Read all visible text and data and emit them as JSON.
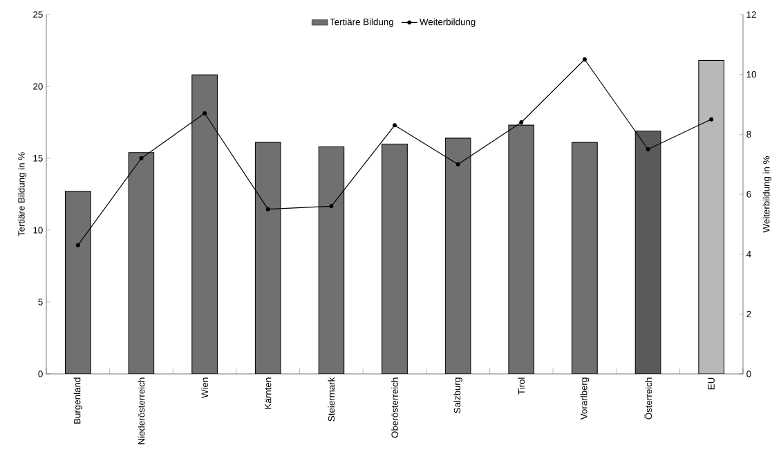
{
  "chart_data": {
    "type": "bar",
    "categories": [
      "Burgenland",
      "Niederösterreich",
      "Wien",
      "Kärnten",
      "Steiermark",
      "Oberösterreich",
      "Salzburg",
      "Tirol",
      "Vorarlberg",
      "Österreich",
      "EU"
    ],
    "series": [
      {
        "name": "Tertiäre Bildung",
        "color": "#707070",
        "colors": [
          "#707070",
          "#707070",
          "#707070",
          "#707070",
          "#707070",
          "#707070",
          "#707070",
          "#707070",
          "#707070",
          "#5a5a5a",
          "#b8b8b8"
        ],
        "values": [
          12.7,
          15.4,
          20.8,
          16.1,
          15.8,
          16.0,
          16.4,
          17.3,
          16.1,
          16.9,
          21.8
        ]
      },
      {
        "name": "Weiterbildung",
        "type": "line",
        "axis": "y2",
        "color": "#000000",
        "marker": "circle",
        "line_style": "solid",
        "values": [
          4.3,
          7.2,
          8.7,
          5.5,
          5.6,
          8.3,
          7.0,
          8.4,
          10.5,
          7.5,
          8.5
        ]
      }
    ],
    "ylabel": "Tertiäre Bildung in %",
    "y2label": "Weiterbildung in %",
    "ylim": [
      0,
      25
    ],
    "yticks": [
      0,
      5,
      10,
      15,
      20,
      25
    ],
    "y2lim": [
      0,
      12
    ],
    "y2ticks": [
      0,
      2,
      4,
      6,
      8,
      10,
      12
    ],
    "legend": "top",
    "grid": false
  }
}
